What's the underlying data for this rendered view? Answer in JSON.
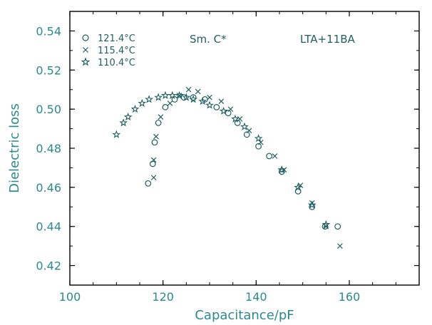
{
  "chart_data": {
    "type": "scatter",
    "xlabel": "Capacitance/pF",
    "ylabel": "Dielectric  loss",
    "xlim": [
      100,
      175
    ],
    "ylim": [
      0.41,
      0.55
    ],
    "x_ticks": [
      "100",
      "120",
      "140",
      "160"
    ],
    "x_tick_values": [
      100,
      120,
      140,
      160
    ],
    "y_ticks": [
      "0.42",
      "0.44",
      "0.46",
      "0.48",
      "0.50",
      "0.52",
      "0.54"
    ],
    "y_tick_values": [
      0.42,
      0.44,
      0.46,
      0.48,
      0.5,
      0.52,
      0.54
    ],
    "annotations": {
      "phase": "Sm. C*",
      "sample": "LTA+11BA"
    },
    "colors": {
      "marks": "#1f5f62",
      "axis_text": "#2a8a8e",
      "frame": "#000000"
    },
    "legend_position": "top-left",
    "series": [
      {
        "name": "121.4°C",
        "marker": "circle",
        "points": [
          [
            116.8,
            0.462
          ],
          [
            117.8,
            0.472
          ],
          [
            118.2,
            0.483
          ],
          [
            119.0,
            0.493
          ],
          [
            120.5,
            0.501
          ],
          [
            122.5,
            0.505
          ],
          [
            124.5,
            0.506
          ],
          [
            126.5,
            0.506
          ],
          [
            129.0,
            0.505
          ],
          [
            131.5,
            0.501
          ],
          [
            134.0,
            0.498
          ],
          [
            136.0,
            0.493
          ],
          [
            138.0,
            0.487
          ],
          [
            140.5,
            0.481
          ],
          [
            142.8,
            0.476
          ],
          [
            145.5,
            0.468
          ],
          [
            149.0,
            0.458
          ],
          [
            152.0,
            0.45
          ],
          [
            154.8,
            0.44
          ],
          [
            157.5,
            0.44
          ]
        ]
      },
      {
        "name": "115.4°C",
        "marker": "x",
        "points": [
          [
            118.0,
            0.465
          ],
          [
            118.0,
            0.474
          ],
          [
            118.5,
            0.486
          ],
          [
            119.5,
            0.496
          ],
          [
            121.5,
            0.503
          ],
          [
            123.5,
            0.507
          ],
          [
            125.5,
            0.51
          ],
          [
            127.5,
            0.509
          ],
          [
            130.0,
            0.506
          ],
          [
            132.5,
            0.504
          ],
          [
            134.5,
            0.5
          ],
          [
            136.5,
            0.495
          ],
          [
            138.5,
            0.489
          ],
          [
            141.0,
            0.483
          ],
          [
            144.0,
            0.476
          ],
          [
            146.0,
            0.469
          ],
          [
            149.5,
            0.461
          ],
          [
            152.0,
            0.452
          ],
          [
            155.0,
            0.44
          ],
          [
            158.0,
            0.43
          ]
        ]
      },
      {
        "name": "110.4°C",
        "marker": "star",
        "points": [
          [
            110.0,
            0.487
          ],
          [
            111.5,
            0.493
          ],
          [
            112.5,
            0.496
          ],
          [
            114.0,
            0.5
          ],
          [
            115.5,
            0.503
          ],
          [
            117.0,
            0.505
          ],
          [
            119.0,
            0.506
          ],
          [
            120.5,
            0.507
          ],
          [
            122.0,
            0.507
          ],
          [
            123.5,
            0.507
          ],
          [
            125.0,
            0.506
          ],
          [
            126.5,
            0.505
          ],
          [
            128.5,
            0.504
          ],
          [
            130.0,
            0.502
          ],
          [
            133.0,
            0.499
          ],
          [
            135.5,
            0.495
          ],
          [
            137.5,
            0.491
          ],
          [
            140.5,
            0.485
          ],
          [
            145.5,
            0.469
          ],
          [
            149.0,
            0.46
          ],
          [
            152.0,
            0.451
          ],
          [
            155.0,
            0.441
          ]
        ]
      }
    ]
  }
}
